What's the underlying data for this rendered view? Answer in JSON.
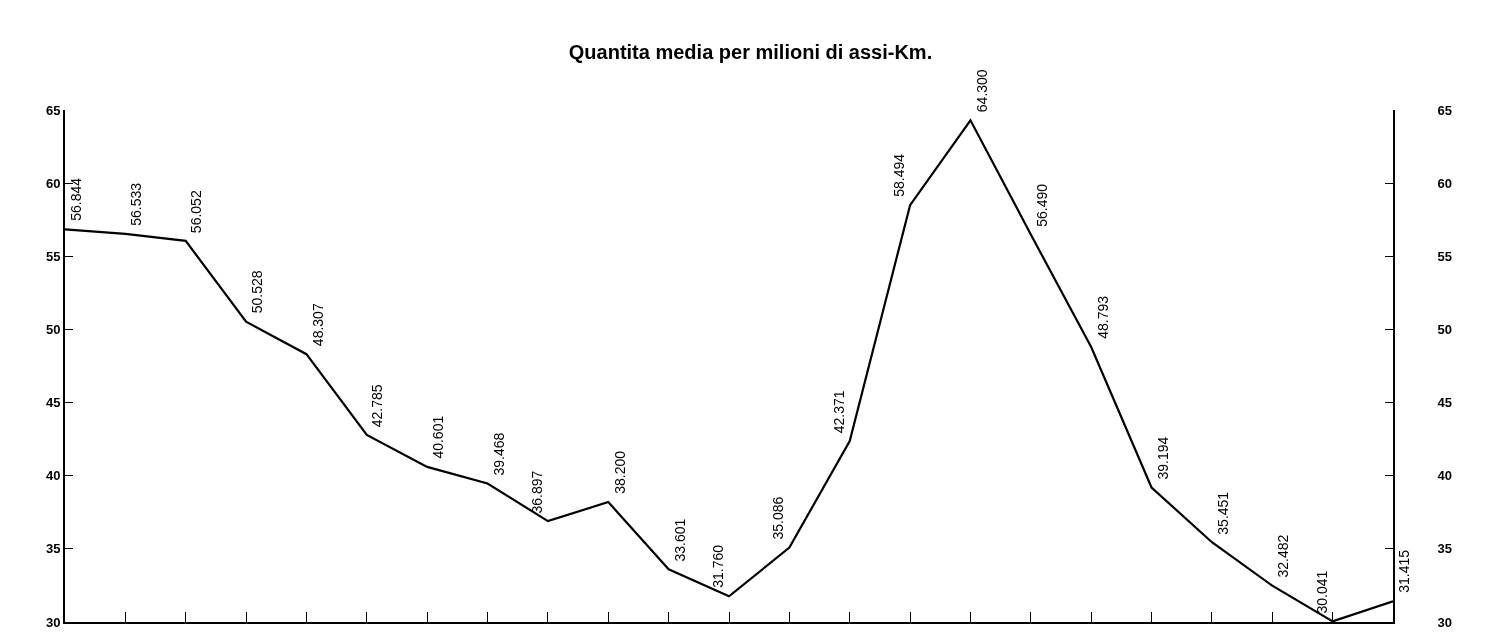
{
  "chart_data": {
    "type": "line",
    "title": "Quantita media per milioni di assi-Km.",
    "categories": [
      null,
      null,
      null,
      null,
      null,
      null,
      null,
      null,
      null,
      null,
      null,
      null,
      null,
      null,
      null,
      null,
      null,
      null,
      null,
      null,
      null,
      null,
      null
    ],
    "series": [
      {
        "color": "#000000",
        "values": [
          56.844,
          56.533,
          56.052,
          50.528,
          48.307,
          42.785,
          40.601,
          39.468,
          36.897,
          38.2,
          33.601,
          31.76,
          35.086,
          42.371,
          58.494,
          64.3,
          56.49,
          48.793,
          39.194,
          35.451,
          32.482,
          30.041,
          31.415
        ],
        "value_labels": [
          "56.844",
          "56.533",
          "56.052",
          "50.528",
          "48.307",
          "42.785",
          "40.601",
          "39.468",
          "36.897",
          "38.200",
          "33.601",
          "31.760",
          "35.086",
          "42.371",
          "58.494",
          "64.300",
          "56.490",
          "48.793",
          "39.194",
          "35.451",
          "32.482",
          "30.041",
          "31.415"
        ]
      }
    ],
    "ylim": [
      30,
      65
    ],
    "yticks": [
      30,
      35,
      40,
      45,
      50,
      55,
      60,
      65
    ],
    "y2lim": [
      30,
      65
    ],
    "y2ticks": [
      30,
      35,
      40,
      45,
      50,
      55,
      60,
      65
    ],
    "grid": false,
    "marker": "none",
    "line_style": "solid"
  }
}
